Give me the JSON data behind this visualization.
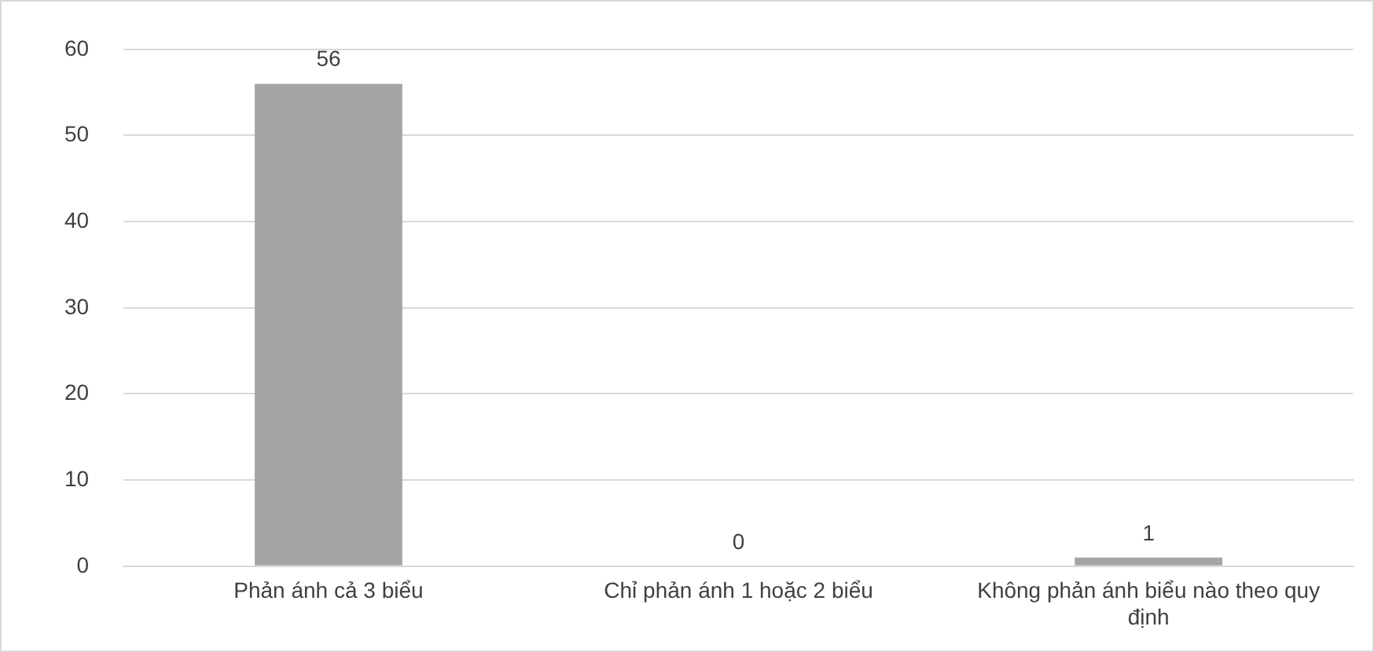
{
  "chart_data": {
    "type": "bar",
    "categories": [
      "Phản ánh cả 3 biểu",
      "Chỉ phản ánh 1 hoặc 2 biểu",
      "Không phản ánh biểu nào theo quy định"
    ],
    "values": [
      56,
      0,
      1
    ],
    "color": "#a5a5a5",
    "ylim": [
      0,
      60
    ],
    "yticks": [
      0,
      10,
      20,
      30,
      40,
      50,
      60
    ],
    "grid": "y",
    "data_labels": true,
    "legend": false
  }
}
